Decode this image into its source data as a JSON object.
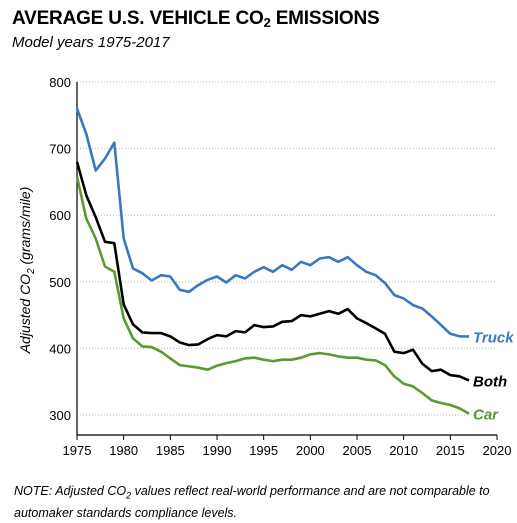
{
  "header": {
    "title_main": "AVERAGE U.S. VEHICLE CO",
    "title_sub": "2",
    "title_end": " EMISSIONS",
    "subtitle": "Model years 1975-2017"
  },
  "note": {
    "part1": "NOTE: Adjusted CO",
    "sub": "2",
    "part2": " values reflect real-world performance and are not comparable to automaker standards compliance levels."
  },
  "axes": {
    "ylabel_main": "Adjusted CO",
    "ylabel_sub": "2",
    "ylabel_end": " (grams/mile)"
  },
  "colors": {
    "truck": "#3a78c2",
    "both": "#000000",
    "car": "#5a9a2e",
    "grid": "#bbbbbb"
  },
  "chart_data": {
    "type": "line",
    "title": "AVERAGE U.S. VEHICLE CO2 EMISSIONS",
    "subtitle": "Model years 1975-2017",
    "xlabel": "",
    "ylabel": "Adjusted CO2 (grams/mile)",
    "xlim": [
      1975,
      2020
    ],
    "ylim": [
      270,
      800
    ],
    "x_ticks": [
      "1975",
      "1980",
      "1985",
      "1990",
      "1995",
      "2000",
      "2005",
      "2010",
      "2015",
      "2020"
    ],
    "y_ticks": [
      "300",
      "400",
      "500",
      "600",
      "700",
      "800"
    ],
    "grid": "horizontal dotted",
    "series": [
      {
        "name": "Truck",
        "x": [
          1975,
          1976,
          1977,
          1978,
          1979,
          1980,
          1981,
          1982,
          1983,
          1984,
          1985,
          1986,
          1987,
          1988,
          1989,
          1990,
          1991,
          1992,
          1993,
          1994,
          1995,
          1996,
          1997,
          1998,
          1999,
          2000,
          2001,
          2002,
          2003,
          2004,
          2005,
          2006,
          2007,
          2008,
          2009,
          2010,
          2011,
          2012,
          2013,
          2014,
          2015,
          2016,
          2017
        ],
        "values": [
          760,
          722,
          667,
          685,
          709,
          565,
          520,
          513,
          502,
          510,
          508,
          488,
          485,
          495,
          503,
          508,
          499,
          510,
          505,
          515,
          522,
          515,
          525,
          518,
          530,
          525,
          535,
          537,
          530,
          537,
          525,
          515,
          510,
          498,
          480,
          475,
          465,
          460,
          448,
          435,
          422,
          418,
          418
        ]
      },
      {
        "name": "Both",
        "x": [
          1975,
          1976,
          1977,
          1978,
          1979,
          1980,
          1981,
          1982,
          1983,
          1984,
          1985,
          1986,
          1987,
          1988,
          1989,
          1990,
          1991,
          1992,
          1993,
          1994,
          1995,
          1996,
          1997,
          1998,
          1999,
          2000,
          2001,
          2002,
          2003,
          2004,
          2005,
          2006,
          2007,
          2008,
          2009,
          2010,
          2011,
          2012,
          2013,
          2014,
          2015,
          2016,
          2017
        ],
        "values": [
          680,
          630,
          597,
          560,
          558,
          466,
          436,
          424,
          423,
          423,
          418,
          409,
          405,
          406,
          414,
          420,
          418,
          426,
          424,
          435,
          432,
          433,
          440,
          441,
          450,
          448,
          452,
          456,
          452,
          459,
          445,
          438,
          430,
          422,
          395,
          393,
          398,
          377,
          366,
          368,
          360,
          358,
          352
        ]
      },
      {
        "name": "Car",
        "x": [
          1975,
          1976,
          1977,
          1978,
          1979,
          1980,
          1981,
          1982,
          1983,
          1984,
          1985,
          1986,
          1987,
          1988,
          1989,
          1990,
          1991,
          1992,
          1993,
          1994,
          1995,
          1996,
          1997,
          1998,
          1999,
          2000,
          2001,
          2002,
          2003,
          2004,
          2005,
          2006,
          2007,
          2008,
          2009,
          2010,
          2011,
          2012,
          2013,
          2014,
          2015,
          2016,
          2017
        ],
        "values": [
          658,
          595,
          565,
          523,
          515,
          445,
          415,
          403,
          402,
          395,
          385,
          375,
          373,
          371,
          368,
          374,
          378,
          381,
          385,
          386,
          383,
          381,
          383,
          383,
          386,
          391,
          393,
          391,
          388,
          386,
          386,
          383,
          382,
          375,
          358,
          347,
          343,
          333,
          322,
          318,
          315,
          310,
          302
        ]
      }
    ]
  }
}
